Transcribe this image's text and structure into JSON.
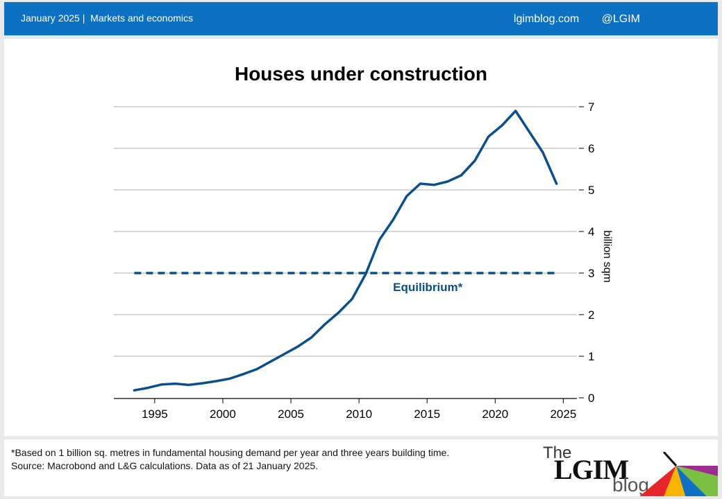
{
  "header": {
    "date": "January 2025",
    "section": "Markets and economics",
    "site": "lgimblog.com",
    "handle": "@LGIM"
  },
  "footer": {
    "note": "*Based on 1 billion sq. metres in fundamental housing demand per year and three years building time.",
    "source": "Source: Macrobond and L&G calculations. Data as of 21 January 2025.",
    "logo_the": "The",
    "logo_lgim": "LGIM",
    "logo_blog": "blog"
  },
  "chart_data": {
    "type": "line",
    "title": "Houses under construction",
    "ylabel": "billion sqm",
    "xlim": [
      1992,
      2026
    ],
    "ylim": [
      0,
      7
    ],
    "xticks": [
      1995,
      2000,
      2005,
      2010,
      2015,
      2020,
      2025
    ],
    "yticks": [
      0,
      1,
      2,
      3,
      4,
      5,
      6,
      7
    ],
    "grid": true,
    "series": [
      {
        "color": "#0a4f8c",
        "x": [
          1993.5,
          1994.5,
          1995.5,
          1996.5,
          1997.5,
          1998.5,
          1999.5,
          2000.5,
          2001.5,
          2002.5,
          2003.5,
          2004.5,
          2005.5,
          2006.5,
          2007.5,
          2008.5,
          2009.5,
          2010.5,
          2011.5,
          2012.5,
          2013.5,
          2014.5,
          2015.5,
          2016.5,
          2017.5,
          2018.5,
          2019.5,
          2020.5,
          2021.5,
          2022.5,
          2023.5,
          2024.5
        ],
        "y": [
          0.18,
          0.24,
          0.32,
          0.34,
          0.31,
          0.35,
          0.4,
          0.46,
          0.57,
          0.69,
          0.87,
          1.05,
          1.23,
          1.45,
          1.77,
          2.05,
          2.38,
          2.98,
          3.8,
          4.28,
          4.85,
          5.15,
          5.12,
          5.2,
          5.35,
          5.7,
          6.28,
          6.55,
          6.9,
          6.4,
          5.9,
          5.15
        ]
      }
    ],
    "reference_line": {
      "label": "Equilibrium*",
      "y": 3,
      "x_start": 1993.5,
      "x_end": 2024.5,
      "style": "dashed",
      "color": "#0a4f8c"
    }
  }
}
